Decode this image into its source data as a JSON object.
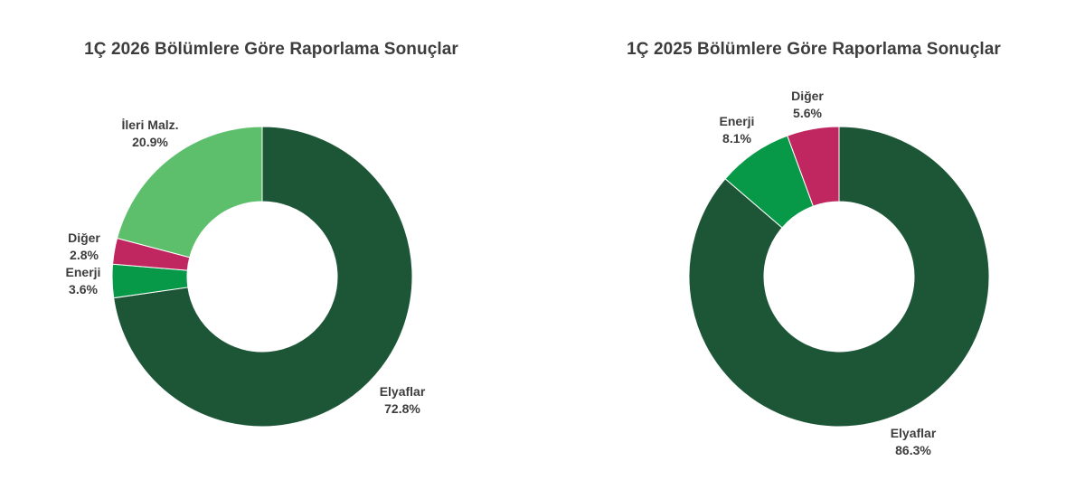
{
  "chart_data": [
    {
      "type": "pie",
      "donut": true,
      "title": "1Ç 2026 Bölümlere Göre Raporlama Sonuçlar",
      "slices": [
        {
          "label": "Elyaflar",
          "value": 72.8,
          "display": "72.8%",
          "color": "#1d5637"
        },
        {
          "label": "Enerji",
          "value": 3.6,
          "display": "3.6%",
          "color": "#079848"
        },
        {
          "label": "Diğer",
          "value": 2.8,
          "display": "2.8%",
          "color": "#c0265f"
        },
        {
          "label": "İleri Malz.",
          "value": 20.9,
          "display": "20.9%",
          "color": "#5dbf6b"
        }
      ]
    },
    {
      "type": "pie",
      "donut": true,
      "title": "1Ç 2025 Bölümlere Göre Raporlama Sonuçlar",
      "slices": [
        {
          "label": "Elyaflar",
          "value": 86.3,
          "display": "86.3%",
          "color": "#1d5637"
        },
        {
          "label": "Enerji",
          "value": 8.1,
          "display": "8.1%",
          "color": "#079848"
        },
        {
          "label": "Diğer",
          "value": 5.6,
          "display": "5.6%",
          "color": "#c0265f"
        }
      ]
    }
  ]
}
